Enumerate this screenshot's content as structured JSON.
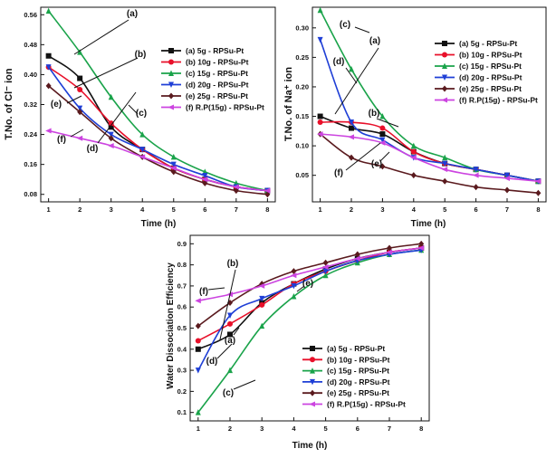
{
  "chart_data": [
    {
      "type": "line",
      "panel": "cl",
      "xlabel": "Time (h)",
      "ylabel": "T.No. of Cl⁻ ion",
      "x": [
        1,
        2,
        3,
        4,
        5,
        6,
        7,
        8
      ],
      "xlim": [
        0.75,
        8.25
      ],
      "ylim": [
        0.06,
        0.58
      ],
      "xticks": [
        "1",
        "2",
        "3",
        "4",
        "5",
        "6",
        "7",
        "8"
      ],
      "yticks": [
        0.08,
        0.16,
        0.24,
        0.32,
        0.4,
        0.48,
        0.56
      ],
      "ytick_labels": [
        "0.08",
        "0.16",
        "0.24",
        "0.32",
        "0.40",
        "0.48",
        "0.56"
      ],
      "legend_position": "top-right",
      "series": [
        {
          "name": "(a) 5g - RPSu-Pt",
          "color": "#111111",
          "marker": "square",
          "values": [
            0.45,
            0.39,
            0.26,
            0.2,
            0.15,
            0.12,
            0.1,
            0.09
          ]
        },
        {
          "name": "(b) 10g - RPSu-Pt",
          "color": "#e8102a",
          "marker": "circle",
          "values": [
            0.42,
            0.36,
            0.27,
            0.2,
            0.15,
            0.12,
            0.1,
            0.09
          ]
        },
        {
          "name": "(c) 15g - RPSu-Pt",
          "color": "#1aa34a",
          "marker": "triangle-up",
          "values": [
            0.57,
            0.46,
            0.34,
            0.24,
            0.18,
            0.14,
            0.11,
            0.09
          ]
        },
        {
          "name": "(d) 20g - RPSu-Pt",
          "color": "#1f3fd6",
          "marker": "triangle-down",
          "values": [
            0.42,
            0.31,
            0.24,
            0.2,
            0.16,
            0.13,
            0.1,
            0.09
          ]
        },
        {
          "name": "(e) 25g - RPSu-Pt",
          "color": "#5a1a1e",
          "marker": "diamond",
          "values": [
            0.37,
            0.3,
            0.23,
            0.18,
            0.14,
            0.11,
            0.09,
            0.08
          ]
        },
        {
          "name": "(f) R.P(15g) - RPSu-Pt",
          "color": "#cc44e0",
          "marker": "triangle-left",
          "values": [
            0.25,
            0.23,
            0.21,
            0.18,
            0.15,
            0.12,
            0.1,
            0.09
          ]
        }
      ],
      "annotations": [
        "(a)",
        "(b)",
        "(c)",
        "(d)",
        "(e)",
        "(f)"
      ]
    },
    {
      "type": "line",
      "panel": "na",
      "xlabel": "Time (h)",
      "ylabel": "T.No. of Na⁺ ion",
      "x": [
        1,
        2,
        3,
        4,
        5,
        6,
        7,
        8
      ],
      "xlim": [
        0.75,
        8.25
      ],
      "ylim": [
        0.005,
        0.335
      ],
      "xticks": [
        "1",
        "2",
        "3",
        "4",
        "5",
        "6",
        "7",
        "8"
      ],
      "yticks": [
        0.05,
        0.1,
        0.15,
        0.2,
        0.25,
        0.3
      ],
      "ytick_labels": [
        "0.05",
        "0.10",
        "0.15",
        "0.20",
        "0.25",
        "0.30"
      ],
      "legend_position": "top-right",
      "series": [
        {
          "name": "(a) 5g - RPSu-Pt",
          "color": "#111111",
          "marker": "square",
          "values": [
            0.15,
            0.13,
            0.12,
            0.09,
            0.07,
            0.06,
            0.05,
            0.04
          ]
        },
        {
          "name": "(b) 10g - RPSu-Pt",
          "color": "#e8102a",
          "marker": "circle",
          "values": [
            0.14,
            0.14,
            0.13,
            0.09,
            0.07,
            0.06,
            0.05,
            0.04
          ]
        },
        {
          "name": "(c) 15g - RPSu-Pt",
          "color": "#1aa34a",
          "marker": "triangle-up",
          "values": [
            0.33,
            0.23,
            0.15,
            0.1,
            0.08,
            0.06,
            0.05,
            0.04
          ]
        },
        {
          "name": "(d) 20g - RPSu-Pt",
          "color": "#1f3fd6",
          "marker": "triangle-down",
          "values": [
            0.28,
            0.14,
            0.11,
            0.08,
            0.07,
            0.06,
            0.05,
            0.04
          ]
        },
        {
          "name": "(e) 25g - RPSu-Pt",
          "color": "#5a1a1e",
          "marker": "diamond",
          "values": [
            0.12,
            0.08,
            0.065,
            0.05,
            0.04,
            0.03,
            0.025,
            0.02
          ]
        },
        {
          "name": "(f) R.P(15g) - RPSu-Pt",
          "color": "#cc44e0",
          "marker": "triangle-left",
          "values": [
            0.12,
            0.115,
            0.105,
            0.08,
            0.06,
            0.05,
            0.045,
            0.04
          ]
        }
      ],
      "annotations": [
        "(a)",
        "(b)",
        "(c)",
        "(d)",
        "(e)",
        "(f)"
      ]
    },
    {
      "type": "line",
      "panel": "wde",
      "xlabel": "Time (h)",
      "ylabel": "Water Dissociation Efficiency",
      "x": [
        1,
        2,
        3,
        4,
        5,
        6,
        7,
        8
      ],
      "xlim": [
        0.75,
        8.25
      ],
      "ylim": [
        0.06,
        0.94
      ],
      "xticks": [
        "1",
        "2",
        "3",
        "4",
        "5",
        "6",
        "7",
        "8"
      ],
      "yticks": [
        0.1,
        0.2,
        0.3,
        0.4,
        0.5,
        0.6,
        0.7,
        0.8,
        0.9
      ],
      "ytick_labels": [
        "0.1",
        "0.2",
        "0.3",
        "0.4",
        "0.5",
        "0.6",
        "0.7",
        "0.8",
        "0.9"
      ],
      "legend_position": "bottom-right",
      "series": [
        {
          "name": "(a) 5g - RPSu-Pt",
          "color": "#111111",
          "marker": "square",
          "values": [
            0.4,
            0.47,
            0.62,
            0.71,
            0.78,
            0.83,
            0.86,
            0.88
          ]
        },
        {
          "name": "(b) 10g - RPSu-Pt",
          "color": "#e8102a",
          "marker": "circle",
          "values": [
            0.44,
            0.52,
            0.61,
            0.71,
            0.77,
            0.82,
            0.86,
            0.88
          ]
        },
        {
          "name": "(c) 15g - RPSu-Pt",
          "color": "#1aa34a",
          "marker": "triangle-up",
          "values": [
            0.1,
            0.3,
            0.51,
            0.65,
            0.75,
            0.81,
            0.85,
            0.87
          ]
        },
        {
          "name": "(d) 20g - RPSu-Pt",
          "color": "#1f3fd6",
          "marker": "triangle-down",
          "values": [
            0.3,
            0.56,
            0.64,
            0.7,
            0.77,
            0.82,
            0.85,
            0.87
          ]
        },
        {
          "name": "(e) 25g - RPSu-Pt",
          "color": "#5a1a1e",
          "marker": "diamond",
          "values": [
            0.51,
            0.62,
            0.71,
            0.77,
            0.81,
            0.85,
            0.88,
            0.9
          ]
        },
        {
          "name": "(f) R.P(15g) - RPSu-Pt",
          "color": "#cc44e0",
          "marker": "triangle-left",
          "values": [
            0.63,
            0.66,
            0.7,
            0.75,
            0.79,
            0.83,
            0.86,
            0.88
          ]
        }
      ],
      "annotations": [
        "(a)",
        "(b)",
        "(c)",
        "(d)",
        "(e)",
        "(f)"
      ]
    }
  ]
}
